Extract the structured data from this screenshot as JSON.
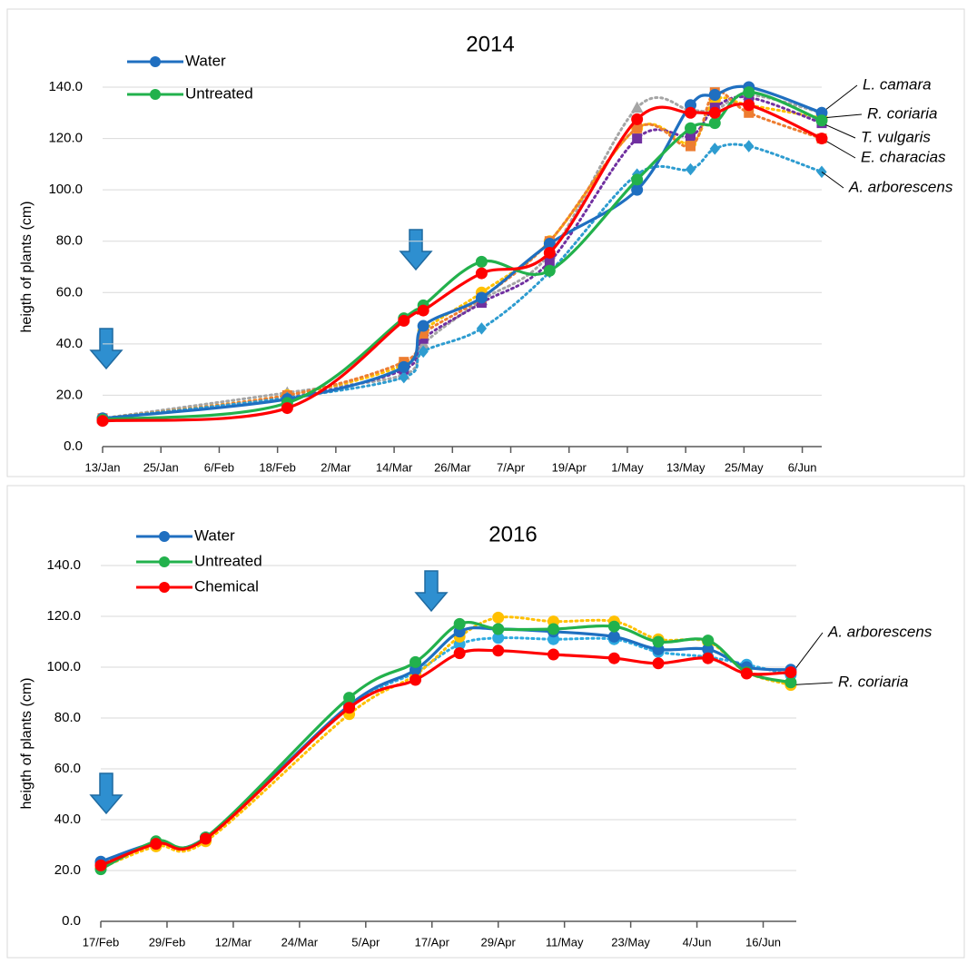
{
  "chart_data": [
    {
      "type": "line",
      "title": "2014",
      "y_label": "heigth of plants (cm)",
      "xlim": [
        13,
        161
      ],
      "xticks": [
        {
          "value": 13,
          "label": "13/Jan"
        },
        {
          "value": 25,
          "label": "25/Jan"
        },
        {
          "value": 37,
          "label": "6/Feb"
        },
        {
          "value": 49,
          "label": "18/Feb"
        },
        {
          "value": 61,
          "label": "2/Mar"
        },
        {
          "value": 73,
          "label": "14/Mar"
        },
        {
          "value": 85,
          "label": "26/Mar"
        },
        {
          "value": 97,
          "label": "7/Apr"
        },
        {
          "value": 109,
          "label": "19/Apr"
        },
        {
          "value": 121,
          "label": "1/May"
        },
        {
          "value": 133,
          "label": "13/May"
        },
        {
          "value": 145,
          "label": "25/May"
        },
        {
          "value": 157,
          "label": "6/Jun"
        }
      ],
      "ylim": [
        0,
        140
      ],
      "yticks": [
        {
          "value": 0,
          "label": "0.0"
        },
        {
          "value": 20,
          "label": "20.0"
        },
        {
          "value": 40,
          "label": "40.0"
        },
        {
          "value": 60,
          "label": "60.0"
        },
        {
          "value": 80,
          "label": "80.0"
        },
        {
          "value": 100,
          "label": "100.0"
        },
        {
          "value": 120,
          "label": "120.0"
        },
        {
          "value": 140,
          "label": "140.0"
        }
      ],
      "grid": true,
      "x": [
        13,
        51,
        75,
        79,
        91,
        105,
        123,
        134,
        139,
        146,
        161
      ],
      "series": [
        {
          "name": "L. camara",
          "color": "#a5a5a5",
          "line_style": "dotted",
          "marker": "triangle",
          "values": [
            11,
            21,
            28,
            40,
            57,
            75,
            132,
            131,
            131,
            137,
            130
          ]
        },
        {
          "name": "R. coriaria",
          "color": "#ffc000",
          "line_style": "dotted",
          "marker": "circle",
          "values": [
            11,
            20,
            32,
            45,
            60,
            80,
            124,
            118,
            135,
            133,
            128
          ]
        },
        {
          "name": "T. vulgaris",
          "color": "#7030a0",
          "line_style": "dotted",
          "marker": "square",
          "values": [
            11,
            19,
            30,
            42,
            56,
            72,
            120,
            121,
            132,
            136,
            126
          ]
        },
        {
          "name": "E. characias",
          "color": "#ed7d31",
          "line_style": "dotted",
          "marker": "square",
          "values": [
            11,
            20,
            33,
            44,
            58,
            80,
            124,
            117,
            138,
            130,
            120
          ]
        },
        {
          "name": "A. arborescens",
          "color": "#2e9cd0",
          "line_style": "dotted",
          "marker": "diamond",
          "values": [
            11,
            19,
            27,
            37,
            46,
            68,
            106,
            108,
            116,
            117,
            107
          ]
        },
        {
          "name": "Water",
          "color": "#1f6fc0",
          "line_style": "solid",
          "marker": "circle",
          "values": [
            11,
            18.5,
            31,
            47,
            58,
            79,
            100,
            133,
            137,
            140,
            130
          ]
        },
        {
          "name": "Untreated",
          "color": "#22b14c",
          "line_style": "solid",
          "marker": "circle",
          "values": [
            10.5,
            17,
            50,
            55,
            72,
            68.5,
            104,
            124,
            126,
            138,
            127
          ]
        },
        {
          "color": "#ff0000",
          "line_style": "solid",
          "marker": "circle",
          "values": [
            10,
            15,
            49,
            53,
            67.5,
            75.5,
            127.5,
            130,
            130,
            133,
            120
          ]
        }
      ]
    },
    {
      "type": "line",
      "title": "2016",
      "y_label": "heigth of plants (cm)",
      "xlim": [
        48,
        174
      ],
      "xticks": [
        {
          "value": 48,
          "label": "17/Feb"
        },
        {
          "value": 60,
          "label": "29/Feb"
        },
        {
          "value": 72,
          "label": "12/Mar"
        },
        {
          "value": 84,
          "label": "24/Mar"
        },
        {
          "value": 96,
          "label": "5/Apr"
        },
        {
          "value": 108,
          "label": "17/Apr"
        },
        {
          "value": 120,
          "label": "29/Apr"
        },
        {
          "value": 132,
          "label": "11/May"
        },
        {
          "value": 144,
          "label": "23/May"
        },
        {
          "value": 156,
          "label": "4/Jun"
        },
        {
          "value": 168,
          "label": "16/Jun"
        }
      ],
      "ylim": [
        0,
        140
      ],
      "yticks": [
        {
          "value": 0,
          "label": "0.0"
        },
        {
          "value": 20,
          "label": "20.0"
        },
        {
          "value": 40,
          "label": "40.0"
        },
        {
          "value": 60,
          "label": "60.0"
        },
        {
          "value": 80,
          "label": "80.0"
        },
        {
          "value": 100,
          "label": "100.0"
        },
        {
          "value": 120,
          "label": "120.0"
        },
        {
          "value": 140,
          "label": "140.0"
        }
      ],
      "grid": true,
      "x": [
        48,
        58,
        67,
        93,
        105,
        113,
        120,
        130,
        141,
        149,
        158,
        165,
        173
      ],
      "series": [
        {
          "name": "A. arborescens",
          "color": "#2eaae0",
          "line_style": "dotted",
          "marker": "circle",
          "values": [
            23,
            31,
            33,
            84,
            98,
            109,
            111.5,
            111,
            111,
            106,
            104,
            101,
            97
          ]
        },
        {
          "name": "R. coriaria",
          "color": "#ffc000",
          "line_style": "dotted",
          "marker": "circle",
          "values": [
            21,
            29.5,
            31.5,
            81.5,
            97,
            112,
            119.5,
            118,
            118,
            111,
            110,
            98,
            93
          ]
        },
        {
          "name": "Water",
          "color": "#1f6fc0",
          "line_style": "solid",
          "marker": "circle",
          "values": [
            23.5,
            31,
            33,
            85,
            99,
            114,
            115,
            114,
            112,
            107,
            107,
            100,
            99
          ]
        },
        {
          "name": "Untreated",
          "color": "#22b14c",
          "line_style": "solid",
          "marker": "circle",
          "values": [
            20.5,
            31.5,
            33,
            88,
            102,
            117,
            115,
            115,
            116,
            110,
            110.5,
            98,
            94
          ]
        },
        {
          "name": "Chemical",
          "color": "#ff0000",
          "line_style": "solid",
          "marker": "circle",
          "values": [
            22,
            30.5,
            32.5,
            84,
            95,
            105.5,
            106.5,
            105,
            103.5,
            101.5,
            103.5,
            97.5,
            98
          ]
        }
      ]
    }
  ]
}
